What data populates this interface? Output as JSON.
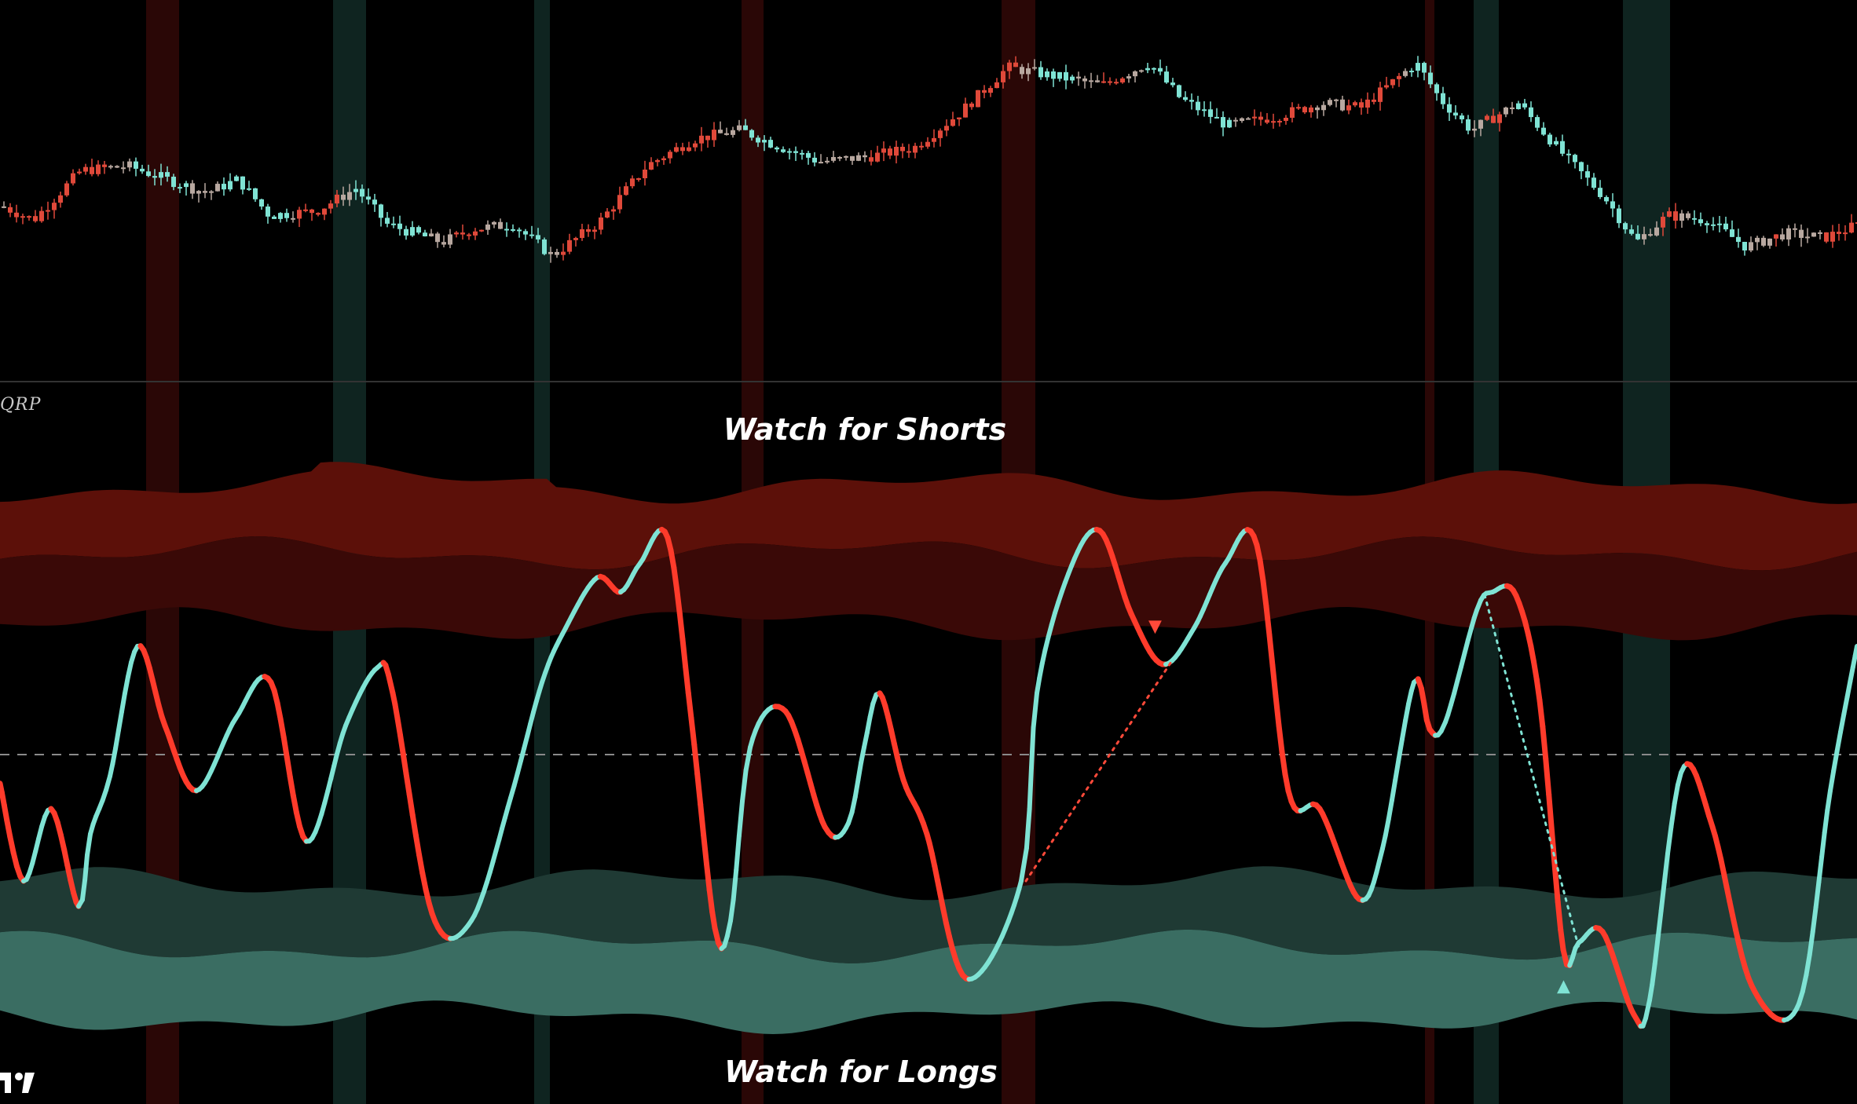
{
  "indicator_label": "QRP",
  "chart_data": [
    {
      "type": "candlestick",
      "panel": "price",
      "colors": {
        "bullish": "#7fe3d4",
        "bearish": "#e0493a",
        "neutral": "#b8a8a0"
      },
      "trend_points": [
        [
          0,
          62
        ],
        [
          40,
          56
        ],
        [
          100,
          78
        ],
        [
          160,
          80
        ],
        [
          260,
          68
        ],
        [
          300,
          74
        ],
        [
          340,
          58
        ],
        [
          400,
          60
        ],
        [
          450,
          70
        ],
        [
          490,
          54
        ],
        [
          560,
          46
        ],
        [
          600,
          52
        ],
        [
          650,
          54
        ],
        [
          700,
          40
        ],
        [
          760,
          55
        ],
        [
          820,
          80
        ],
        [
          880,
          92
        ],
        [
          940,
          96
        ],
        [
          980,
          90
        ],
        [
          1040,
          82
        ],
        [
          1100,
          84
        ],
        [
          1160,
          88
        ],
        [
          1220,
          104
        ],
        [
          1280,
          124
        ],
        [
          1340,
          120
        ],
        [
          1400,
          116
        ],
        [
          1460,
          126
        ],
        [
          1500,
          110
        ],
        [
          1560,
          98
        ],
        [
          1620,
          102
        ],
        [
          1680,
          108
        ],
        [
          1730,
          106
        ],
        [
          1800,
          126
        ],
        [
          1830,
          110
        ],
        [
          1870,
          96
        ],
        [
          1930,
          108
        ],
        [
          1990,
          84
        ],
        [
          2040,
          66
        ],
        [
          2080,
          46
        ],
        [
          2120,
          58
        ],
        [
          2170,
          56
        ],
        [
          2220,
          44
        ],
        [
          2270,
          50
        ],
        [
          2320,
          48
        ],
        [
          2364,
          54
        ]
      ]
    },
    {
      "type": "line",
      "panel": "oscillator",
      "zero_line": 0,
      "ylim": [
        -100,
        100
      ],
      "colors": {
        "rising": "#7fe3d4",
        "falling": "#ff3b2b"
      },
      "x": [
        0,
        30,
        65,
        100,
        115,
        140,
        175,
        210,
        250,
        300,
        345,
        390,
        440,
        480,
        500,
        550,
        600,
        650,
        690,
        720,
        760,
        790,
        815,
        850,
        880,
        910,
        930,
        955,
        1000,
        1050,
        1080,
        1100,
        1120,
        1150,
        1180,
        1230,
        1300,
        1320,
        1360,
        1400,
        1440,
        1480,
        1520,
        1560,
        1600,
        1640,
        1680,
        1730,
        1760,
        1800,
        1820,
        1840,
        1880,
        1900,
        1930,
        1960,
        1990,
        2010,
        2040,
        2080,
        2100,
        2140,
        2180,
        2230,
        2290,
        2330,
        2364
      ],
      "y": [
        -8,
        -35,
        -15,
        -42,
        -22,
        -6,
        30,
        8,
        -10,
        10,
        20,
        -24,
        8,
        24,
        17,
        -44,
        -46,
        -12,
        20,
        35,
        49,
        45,
        53,
        60,
        10,
        -48,
        -46,
        2,
        12,
        -20,
        -19,
        2,
        17,
        -7,
        -22,
        -62,
        -35,
        17,
        50,
        62,
        39,
        25,
        35,
        53,
        58,
        -10,
        -15,
        -40,
        -26,
        20,
        7,
        9,
        40,
        45,
        44,
        15,
        -54,
        -52,
        -49,
        -72,
        -68,
        -5,
        -20,
        -64,
        -69,
        -10,
        30
      ]
    },
    {
      "type": "area",
      "panel": "oscillator",
      "name": "",
      "bands": [
        "upper_outer",
        "upper_inner",
        "lower_inner",
        "lower_outer"
      ],
      "colors": {
        "upper_outer": "#5c1009",
        "upper_inner": "#3a0907",
        "lower_inner": "#1f3a34",
        "lower_outer": "#3a6d62"
      }
    }
  ],
  "annotations": {
    "shorts": "Watch for Shorts",
    "longs": "Watch for Longs"
  },
  "highlight_columns": {
    "red": [
      {
        "x1": 186,
        "x2": 228
      },
      {
        "x1": 944,
        "x2": 972
      },
      {
        "x1": 1275,
        "x2": 1318
      },
      {
        "x1": 1814,
        "x2": 1826
      }
    ],
    "green": [
      {
        "x1": 424,
        "x2": 466
      },
      {
        "x1": 680,
        "x2": 700
      },
      {
        "x1": 1876,
        "x2": 1908
      },
      {
        "x1": 2066,
        "x2": 2126
      }
    ]
  },
  "divergences": [
    {
      "kind": "bearish",
      "color": "#ff4a3a",
      "from_x": 1306,
      "to_x": 1490,
      "marker": "▼"
    },
    {
      "kind": "bullish",
      "color": "#7fe3d4",
      "from_x": 1890,
      "to_x": 2010,
      "marker": "▲"
    }
  ]
}
